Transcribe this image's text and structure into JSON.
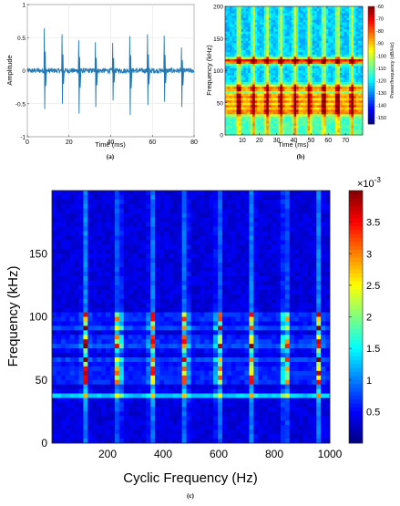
{
  "chart_data": [
    {
      "id": "a",
      "type": "line",
      "caption": "(a)",
      "xlabel": "Time (ms)",
      "ylabel": "Amplitude",
      "xlim": [
        0,
        80
      ],
      "ylim": [
        -1,
        1
      ],
      "xticks": [
        0,
        20,
        40,
        60,
        80
      ],
      "yticks": [
        -1,
        -0.5,
        0,
        0.5,
        1
      ],
      "x_tick_labels": [
        "0",
        "20",
        "40",
        "60",
        "80"
      ],
      "y_tick_labels": [
        "-1",
        "-0.5",
        "0",
        "0.5",
        "1"
      ],
      "grid": true,
      "line_color": "#1f77b4",
      "baseline_noise": 0.04,
      "impulses": [
        {
          "t": 8,
          "pos": 0.64,
          "neg": -0.58
        },
        {
          "t": 16.5,
          "pos": 0.55,
          "neg": -0.5
        },
        {
          "t": 24.5,
          "pos": 0.46,
          "neg": -0.65
        },
        {
          "t": 32.5,
          "pos": 0.43,
          "neg": -0.55
        },
        {
          "t": 40.8,
          "pos": 0.42,
          "neg": -0.45
        },
        {
          "t": 49,
          "pos": 0.52,
          "neg": -0.67
        },
        {
          "t": 57.5,
          "pos": 0.55,
          "neg": -0.52
        },
        {
          "t": 65.5,
          "pos": 0.53,
          "neg": -0.47
        },
        {
          "t": 73.8,
          "pos": 0.35,
          "neg": -0.55
        }
      ]
    },
    {
      "id": "b",
      "type": "heatmap",
      "caption": "(b)",
      "xlabel": "Time (ms)",
      "ylabel": "Frequency (kHz)",
      "colorbar_label": "Power/frequency (dB/Hz)",
      "xlim": [
        0,
        80
      ],
      "ylim": [
        0,
        200
      ],
      "xticks": [
        10,
        20,
        30,
        40,
        50,
        60,
        70
      ],
      "yticks": [
        0,
        50,
        100,
        150,
        200
      ],
      "x_tick_labels": [
        "10",
        "20",
        "30",
        "40",
        "50",
        "60",
        "70"
      ],
      "y_tick_labels": [
        "0",
        "50",
        "100",
        "150",
        "200"
      ],
      "clim": [
        -155,
        -60
      ],
      "colorbar_ticks": [
        -60,
        -70,
        -80,
        -90,
        -100,
        -110,
        -120,
        -130,
        -140,
        -150
      ],
      "colorbar_tick_labels": [
        "-60",
        "-70",
        "-80",
        "-90",
        "-100",
        "-110",
        "-120",
        "-130",
        "-140",
        "-150"
      ],
      "impulse_times": [
        8,
        16.5,
        24.5,
        32.5,
        40.8,
        49,
        57.5,
        65.5,
        73.8
      ],
      "strong_bands_khz": [
        115,
        72,
        60,
        52,
        45,
        38
      ]
    },
    {
      "id": "c",
      "type": "heatmap",
      "caption": "(c)",
      "xlabel": "Cyclic Frequency (Hz)",
      "ylabel": "Frequency (kHz)",
      "xlim": [
        0,
        1000
      ],
      "ylim": [
        0,
        200
      ],
      "xticks": [
        200,
        400,
        600,
        800,
        1000
      ],
      "yticks": [
        0,
        50,
        100,
        150
      ],
      "x_tick_labels": [
        "200",
        "400",
        "600",
        "800",
        "1000"
      ],
      "y_tick_labels": [
        "0",
        "50",
        "100",
        "150"
      ],
      "clim": [
        0,
        0.004
      ],
      "colorbar_exponent": "×10",
      "colorbar_exponent_power": "-3",
      "colorbar_ticks": [
        0.5,
        1,
        1.5,
        2,
        2.5,
        3,
        3.5
      ],
      "colorbar_tick_labels": [
        "0.5",
        "1",
        "1.5",
        "2",
        "2.5",
        "3",
        "3.5"
      ],
      "cyclic_harmonics_hz": [
        120,
        240,
        360,
        480,
        600,
        720,
        840,
        960
      ],
      "strong_bands_khz": [
        100,
        92,
        82,
        76,
        65,
        57,
        50,
        38
      ]
    }
  ]
}
